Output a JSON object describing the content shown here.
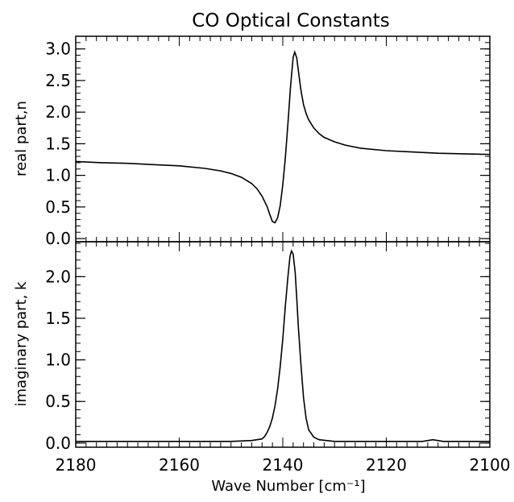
{
  "chart_data": [
    {
      "type": "line",
      "title": "CO Optical Constants",
      "xlabel": "",
      "ylabel": "real part,n",
      "xlim": [
        2180,
        2100
      ],
      "ylim": [
        -0.05,
        3.2
      ],
      "yticks": [
        "0.0",
        "0.5",
        "1.0",
        "1.5",
        "2.0",
        "2.5",
        "3.0"
      ],
      "series": [
        {
          "x": [
            2180,
            2175,
            2170,
            2165,
            2160,
            2155,
            2152,
            2150,
            2148,
            2146,
            2145,
            2144,
            2143,
            2142.5,
            2142,
            2141.5,
            2141,
            2140.5,
            2140,
            2139.5,
            2139,
            2138.5,
            2138,
            2137.7,
            2137.3,
            2137,
            2136.5,
            2136,
            2135.5,
            2135,
            2134,
            2133,
            2132,
            2130,
            2128,
            2125,
            2120,
            2115,
            2110,
            2105,
            2100
          ],
          "y": [
            1.22,
            1.2,
            1.19,
            1.17,
            1.15,
            1.11,
            1.07,
            1.03,
            0.97,
            0.87,
            0.79,
            0.67,
            0.5,
            0.38,
            0.27,
            0.25,
            0.33,
            0.52,
            0.85,
            1.28,
            1.82,
            2.4,
            2.87,
            2.95,
            2.86,
            2.66,
            2.35,
            2.12,
            1.98,
            1.88,
            1.75,
            1.66,
            1.6,
            1.53,
            1.48,
            1.43,
            1.39,
            1.37,
            1.35,
            1.34,
            1.33
          ]
        }
      ]
    },
    {
      "type": "line",
      "title": "",
      "xlabel": "Wave Number [cm⁻¹]",
      "ylabel": "imaginary part, k",
      "xlim": [
        2180,
        2100
      ],
      "ylim": [
        -0.05,
        2.42
      ],
      "xticks": [
        "2180",
        "2160",
        "2140",
        "2120",
        "2100"
      ],
      "yticks": [
        "0.0",
        "0.5",
        "1.0",
        "1.5",
        "2.0"
      ],
      "series": [
        {
          "x": [
            2180,
            2160,
            2150,
            2146,
            2144,
            2143.5,
            2143,
            2142.5,
            2142,
            2141.5,
            2141,
            2140.5,
            2140,
            2139.5,
            2139,
            2138.6,
            2138.3,
            2138,
            2137.6,
            2137.3,
            2137,
            2136.5,
            2136,
            2135.5,
            2135,
            2134,
            2133,
            2130,
            2120,
            2113,
            2111,
            2109,
            2100
          ],
          "y": [
            0.02,
            0.02,
            0.02,
            0.03,
            0.05,
            0.08,
            0.13,
            0.2,
            0.3,
            0.45,
            0.65,
            0.92,
            1.25,
            1.65,
            2.0,
            2.25,
            2.31,
            2.27,
            2.05,
            1.75,
            1.4,
            0.95,
            0.55,
            0.3,
            0.16,
            0.07,
            0.04,
            0.02,
            0.02,
            0.02,
            0.04,
            0.02,
            0.02
          ]
        }
      ]
    }
  ]
}
